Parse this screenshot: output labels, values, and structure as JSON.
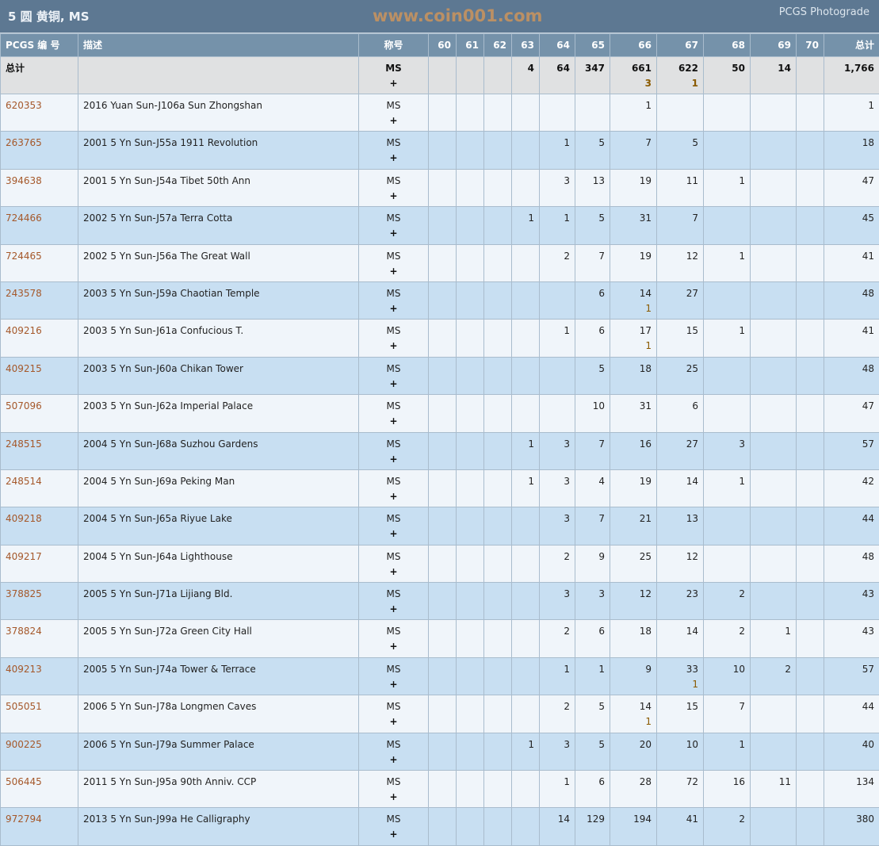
{
  "header": {
    "title": "5 圆 黄铜, MS",
    "brand": "PCGS Photograde"
  },
  "columns": {
    "pcgs": "PCGS 编 号",
    "desc": "描述",
    "designation": "称号",
    "grades": [
      "60",
      "61",
      "62",
      "63",
      "64",
      "65",
      "66",
      "67",
      "68",
      "69",
      "70"
    ],
    "total": "总计"
  },
  "totals": {
    "label": "总计",
    "designation": "MS",
    "designation_plus": "+",
    "grades": [
      "",
      "",
      "",
      "4",
      "64",
      "347",
      "661",
      "622",
      "50",
      "14",
      ""
    ],
    "plus": [
      "",
      "",
      "",
      "",
      "",
      "",
      "3",
      "1",
      "",
      "",
      ""
    ],
    "total": "1,766"
  },
  "rows": [
    {
      "pcgs": "620353",
      "desc": "2016 Yuan Sun-J106a Sun Zhongshan",
      "designation": "MS",
      "designation_plus": "+",
      "grades": [
        "",
        "",
        "",
        "",
        "",
        "",
        "1",
        "",
        "",
        "",
        ""
      ],
      "plus": [
        "",
        "",
        "",
        "",
        "",
        "",
        "",
        "",
        "",
        "",
        ""
      ],
      "total": "1"
    },
    {
      "pcgs": "263765",
      "desc": "2001 5 Yn Sun-J55a 1911 Revolution",
      "designation": "MS",
      "designation_plus": "+",
      "grades": [
        "",
        "",
        "",
        "",
        "1",
        "5",
        "7",
        "5",
        "",
        "",
        ""
      ],
      "plus": [
        "",
        "",
        "",
        "",
        "",
        "",
        "",
        "",
        "",
        "",
        ""
      ],
      "total": "18"
    },
    {
      "pcgs": "394638",
      "desc": "2001 5 Yn Sun-J54a Tibet 50th Ann",
      "designation": "MS",
      "designation_plus": "+",
      "grades": [
        "",
        "",
        "",
        "",
        "3",
        "13",
        "19",
        "11",
        "1",
        "",
        ""
      ],
      "plus": [
        "",
        "",
        "",
        "",
        "",
        "",
        "",
        "",
        "",
        "",
        ""
      ],
      "total": "47"
    },
    {
      "pcgs": "724466",
      "desc": "2002 5 Yn Sun-J57a Terra Cotta",
      "designation": "MS",
      "designation_plus": "+",
      "grades": [
        "",
        "",
        "",
        "1",
        "1",
        "5",
        "31",
        "7",
        "",
        "",
        ""
      ],
      "plus": [
        "",
        "",
        "",
        "",
        "",
        "",
        "",
        "",
        "",
        "",
        ""
      ],
      "total": "45"
    },
    {
      "pcgs": "724465",
      "desc": "2002 5 Yn Sun-J56a The Great Wall",
      "designation": "MS",
      "designation_plus": "+",
      "grades": [
        "",
        "",
        "",
        "",
        "2",
        "7",
        "19",
        "12",
        "1",
        "",
        ""
      ],
      "plus": [
        "",
        "",
        "",
        "",
        "",
        "",
        "",
        "",
        "",
        "",
        ""
      ],
      "total": "41"
    },
    {
      "pcgs": "243578",
      "desc": "2003 5 Yn Sun-J59a Chaotian Temple",
      "designation": "MS",
      "designation_plus": "+",
      "grades": [
        "",
        "",
        "",
        "",
        "",
        "6",
        "14",
        "27",
        "",
        "",
        ""
      ],
      "plus": [
        "",
        "",
        "",
        "",
        "",
        "",
        "1",
        "",
        "",
        "",
        ""
      ],
      "total": "48"
    },
    {
      "pcgs": "409216",
      "desc": "2003 5 Yn Sun-J61a Confucious T.",
      "designation": "MS",
      "designation_plus": "+",
      "grades": [
        "",
        "",
        "",
        "",
        "1",
        "6",
        "17",
        "15",
        "1",
        "",
        ""
      ],
      "plus": [
        "",
        "",
        "",
        "",
        "",
        "",
        "1",
        "",
        "",
        "",
        ""
      ],
      "total": "41"
    },
    {
      "pcgs": "409215",
      "desc": "2003 5 Yn Sun-J60a Chikan Tower",
      "designation": "MS",
      "designation_plus": "+",
      "grades": [
        "",
        "",
        "",
        "",
        "",
        "5",
        "18",
        "25",
        "",
        "",
        ""
      ],
      "plus": [
        "",
        "",
        "",
        "",
        "",
        "",
        "",
        "",
        "",
        "",
        ""
      ],
      "total": "48"
    },
    {
      "pcgs": "507096",
      "desc": "2003 5 Yn Sun-J62a Imperial Palace",
      "designation": "MS",
      "designation_plus": "+",
      "grades": [
        "",
        "",
        "",
        "",
        "",
        "10",
        "31",
        "6",
        "",
        "",
        ""
      ],
      "plus": [
        "",
        "",
        "",
        "",
        "",
        "",
        "",
        "",
        "",
        "",
        ""
      ],
      "total": "47"
    },
    {
      "pcgs": "248515",
      "desc": "2004 5 Yn Sun-J68a Suzhou Gardens",
      "designation": "MS",
      "designation_plus": "+",
      "grades": [
        "",
        "",
        "",
        "1",
        "3",
        "7",
        "16",
        "27",
        "3",
        "",
        ""
      ],
      "plus": [
        "",
        "",
        "",
        "",
        "",
        "",
        "",
        "",
        "",
        "",
        ""
      ],
      "total": "57"
    },
    {
      "pcgs": "248514",
      "desc": "2004 5 Yn Sun-J69a Peking Man",
      "designation": "MS",
      "designation_plus": "+",
      "grades": [
        "",
        "",
        "",
        "1",
        "3",
        "4",
        "19",
        "14",
        "1",
        "",
        ""
      ],
      "plus": [
        "",
        "",
        "",
        "",
        "",
        "",
        "",
        "",
        "",
        "",
        ""
      ],
      "total": "42"
    },
    {
      "pcgs": "409218",
      "desc": "2004 5 Yn Sun-J65a Riyue Lake",
      "designation": "MS",
      "designation_plus": "+",
      "grades": [
        "",
        "",
        "",
        "",
        "3",
        "7",
        "21",
        "13",
        "",
        "",
        ""
      ],
      "plus": [
        "",
        "",
        "",
        "",
        "",
        "",
        "",
        "",
        "",
        "",
        ""
      ],
      "total": "44"
    },
    {
      "pcgs": "409217",
      "desc": "2004 5 Yn Sun-J64a Lighthouse",
      "designation": "MS",
      "designation_plus": "+",
      "grades": [
        "",
        "",
        "",
        "",
        "2",
        "9",
        "25",
        "12",
        "",
        "",
        ""
      ],
      "plus": [
        "",
        "",
        "",
        "",
        "",
        "",
        "",
        "",
        "",
        "",
        ""
      ],
      "total": "48"
    },
    {
      "pcgs": "378825",
      "desc": "2005 5 Yn Sun-J71a Lijiang Bld.",
      "designation": "MS",
      "designation_plus": "+",
      "grades": [
        "",
        "",
        "",
        "",
        "3",
        "3",
        "12",
        "23",
        "2",
        "",
        ""
      ],
      "plus": [
        "",
        "",
        "",
        "",
        "",
        "",
        "",
        "",
        "",
        "",
        ""
      ],
      "total": "43"
    },
    {
      "pcgs": "378824",
      "desc": "2005 5 Yn Sun-J72a Green City Hall",
      "designation": "MS",
      "designation_plus": "+",
      "grades": [
        "",
        "",
        "",
        "",
        "2",
        "6",
        "18",
        "14",
        "2",
        "1",
        ""
      ],
      "plus": [
        "",
        "",
        "",
        "",
        "",
        "",
        "",
        "",
        "",
        "",
        ""
      ],
      "total": "43"
    },
    {
      "pcgs": "409213",
      "desc": "2005 5 Yn Sun-J74a Tower & Terrace",
      "designation": "MS",
      "designation_plus": "+",
      "grades": [
        "",
        "",
        "",
        "",
        "1",
        "1",
        "9",
        "33",
        "10",
        "2",
        ""
      ],
      "plus": [
        "",
        "",
        "",
        "",
        "",
        "",
        "",
        "1",
        "",
        "",
        ""
      ],
      "total": "57"
    },
    {
      "pcgs": "505051",
      "desc": "2006 5 Yn Sun-J78a Longmen Caves",
      "designation": "MS",
      "designation_plus": "+",
      "grades": [
        "",
        "",
        "",
        "",
        "2",
        "5",
        "14",
        "15",
        "7",
        "",
        ""
      ],
      "plus": [
        "",
        "",
        "",
        "",
        "",
        "",
        "1",
        "",
        "",
        "",
        ""
      ],
      "total": "44"
    },
    {
      "pcgs": "900225",
      "desc": "2006 5 Yn Sun-J79a Summer Palace",
      "designation": "MS",
      "designation_plus": "+",
      "grades": [
        "",
        "",
        "",
        "1",
        "3",
        "5",
        "20",
        "10",
        "1",
        "",
        ""
      ],
      "plus": [
        "",
        "",
        "",
        "",
        "",
        "",
        "",
        "",
        "",
        "",
        ""
      ],
      "total": "40"
    },
    {
      "pcgs": "506445",
      "desc": "2011 5 Yn Sun-J95a 90th Anniv. CCP",
      "designation": "MS",
      "designation_plus": "+",
      "grades": [
        "",
        "",
        "",
        "",
        "1",
        "6",
        "28",
        "72",
        "16",
        "11",
        ""
      ],
      "plus": [
        "",
        "",
        "",
        "",
        "",
        "",
        "",
        "",
        "",
        "",
        ""
      ],
      "total": "134"
    },
    {
      "pcgs": "972794",
      "desc": "2013 5 Yn Sun-J99a He Calligraphy",
      "designation": "MS",
      "designation_plus": "+",
      "grades": [
        "",
        "",
        "",
        "",
        "14",
        "129",
        "194",
        "41",
        "2",
        "",
        ""
      ],
      "plus": [
        "",
        "",
        "",
        "",
        "",
        "",
        "",
        "",
        "",
        "",
        ""
      ],
      "total": "380"
    }
  ],
  "watermark": "www.coin001.com",
  "colors": {
    "header_bg": "#5d7892",
    "column_header_bg": "#7592aa",
    "row_odd": "#c8dff2",
    "row_even": "#f0f5fa",
    "total_row": "#e0e1e2",
    "pcgs_link": "#a5582a"
  }
}
